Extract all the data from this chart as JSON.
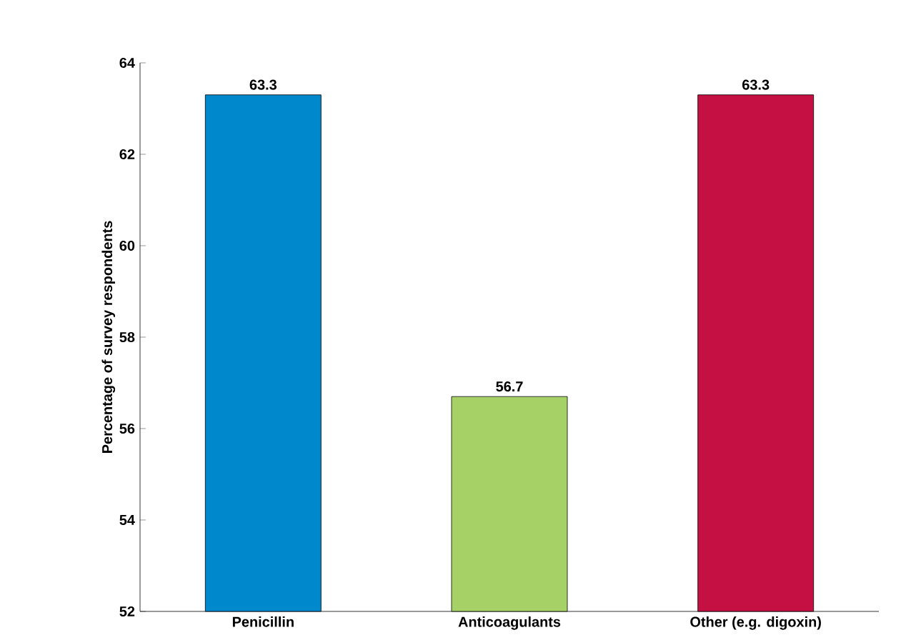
{
  "chart_data": {
    "type": "bar",
    "ylabel": "Percentage of survey respondents",
    "categories": [
      "Penicillin",
      "Anticoagulants",
      "Other (e.g. digoxin)"
    ],
    "values": [
      63.3,
      56.7,
      63.3
    ],
    "colors": [
      "#0088cc",
      "#a5d166",
      "#c41042"
    ],
    "ylim": [
      52,
      64
    ],
    "yticks": [
      52,
      54,
      56,
      58,
      60,
      62,
      64
    ],
    "data_labels": true,
    "grid": false
  }
}
